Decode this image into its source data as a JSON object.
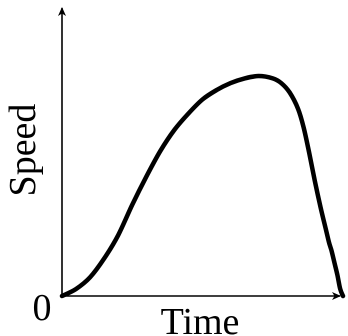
{
  "chart_data": {
    "type": "line",
    "title": "",
    "xlabel": "Time",
    "ylabel": "Speed",
    "origin_label": "0",
    "x_ticks": [],
    "y_ticks": [],
    "xlim": [
      0,
      10
    ],
    "ylim": [
      0,
      10
    ],
    "grid": false,
    "legend": "none",
    "series": [
      {
        "color": "#000000",
        "x": [
          0,
          0.5,
          1.0,
          1.5,
          2.0,
          2.5,
          3.0,
          3.5,
          4.0,
          4.5,
          5.0,
          5.5,
          6.0,
          6.5,
          7.0,
          7.5,
          7.8,
          8.1,
          8.4,
          8.6,
          8.8,
          9.0,
          9.2,
          9.4,
          9.5,
          9.55,
          9.6,
          9.7,
          9.8,
          9.9,
          10.0
        ],
        "y": [
          0,
          0.3,
          0.8,
          1.6,
          2.6,
          3.9,
          5.1,
          6.2,
          7.1,
          7.8,
          8.4,
          8.8,
          9.1,
          9.3,
          9.4,
          9.3,
          9.1,
          8.7,
          8.0,
          7.2,
          6.1,
          4.9,
          3.8,
          2.8,
          2.3,
          2.1,
          1.9,
          1.4,
          0.9,
          0.3,
          0
        ]
      }
    ]
  }
}
